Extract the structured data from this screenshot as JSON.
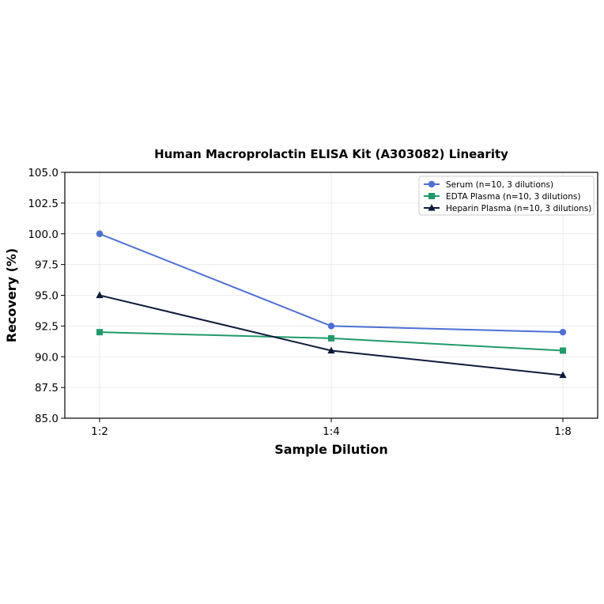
{
  "chart_data": {
    "type": "line",
    "title": "Human Macroprolactin ELISA Kit (A303082) Linearity",
    "xlabel": "Sample Dilution",
    "ylabel": "Recovery (%)",
    "categories": [
      "1:2",
      "1:4",
      "1:8"
    ],
    "ylim": [
      85.0,
      105.0
    ],
    "yticks": [
      "85.0",
      "87.5",
      "90.0",
      "92.5",
      "95.0",
      "97.5",
      "100.0",
      "102.5",
      "105.0"
    ],
    "grid": true,
    "legend_position": "top-right",
    "series": [
      {
        "name": "Serum (n=10, 3 dilutions)",
        "values": [
          100.0,
          92.5,
          92.0
        ],
        "color": "#4e6fd6",
        "marker": "circle"
      },
      {
        "name": "EDTA Plasma (n=10, 3 dilutions)",
        "values": [
          92.0,
          91.5,
          90.5
        ],
        "color": "#1f9a6a",
        "marker": "square"
      },
      {
        "name": "Heparin Plasma (n=10, 3 dilutions)",
        "values": [
          95.0,
          90.5,
          88.5
        ],
        "color": "#0f1a3a",
        "marker": "triangle"
      }
    ]
  }
}
